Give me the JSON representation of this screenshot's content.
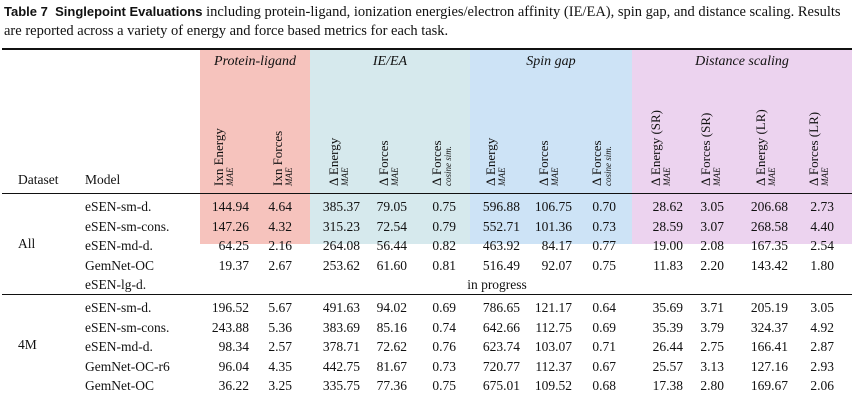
{
  "caption": {
    "label": "Table 7",
    "bold_title": "Singlepoint Evaluations",
    "text": " including protein-ligand, ionization energies/electron affinity (IE/EA), spin gap, and distance scaling. Results are reported across a variety of energy and force based metrics for each task."
  },
  "groups": [
    {
      "label": "Protein-ligand",
      "color": "#f6c3bd"
    },
    {
      "label": "IE/EA",
      "color": "#d6e9ed"
    },
    {
      "label": "Spin gap",
      "color": "#cde3f6"
    },
    {
      "label": "Distance scaling",
      "color": "#ecd3ef"
    }
  ],
  "header": {
    "dataset": "Dataset",
    "model": "Model",
    "columns": [
      {
        "label": "Ixn Energy",
        "sub": "MAE"
      },
      {
        "label": "Ixn Forces",
        "sub": "MAE"
      },
      {
        "label": "Δ Energy",
        "sub": "MAE"
      },
      {
        "label": "Δ Forces",
        "sub": "MAE"
      },
      {
        "label": "Δ Forces",
        "sub": "cosine sim."
      },
      {
        "label": "Δ Energy",
        "sub": "MAE"
      },
      {
        "label": "Δ Forces",
        "sub": "MAE"
      },
      {
        "label": "Δ Forces",
        "sub": "cosine sim."
      },
      {
        "label": "Δ Energy (SR)",
        "sub": "MAE"
      },
      {
        "label": "Δ Forces (SR)",
        "sub": "MAE"
      },
      {
        "label": "Δ Energy (LR)",
        "sub": "MAE"
      },
      {
        "label": "Δ Forces (LR)",
        "sub": "MAE"
      }
    ]
  },
  "sections": [
    {
      "dataset": "All",
      "rows": [
        {
          "model": "eSEN-sm-d.",
          "values": [
            "144.94",
            "4.64",
            "385.37",
            "79.05",
            "0.75",
            "596.88",
            "106.75",
            "0.70",
            "28.62",
            "3.05",
            "206.68",
            "2.73"
          ]
        },
        {
          "model": "eSEN-sm-cons.",
          "values": [
            "147.26",
            "4.32",
            "315.23",
            "72.54",
            "0.79",
            "552.71",
            "101.36",
            "0.73",
            "28.59",
            "3.07",
            "268.58",
            "4.40"
          ]
        },
        {
          "model": "eSEN-md-d.",
          "values": [
            "64.25",
            "2.16",
            "264.08",
            "56.44",
            "0.82",
            "463.92",
            "84.17",
            "0.77",
            "19.00",
            "2.08",
            "167.35",
            "2.54"
          ]
        },
        {
          "model": "GemNet-OC",
          "values": [
            "19.37",
            "2.67",
            "253.62",
            "61.60",
            "0.81",
            "516.49",
            "92.07",
            "0.75",
            "11.83",
            "2.20",
            "143.42",
            "1.80"
          ]
        },
        {
          "model": "eSEN-lg-d.",
          "note": "in progress"
        }
      ]
    },
    {
      "dataset": "4M",
      "rows": [
        {
          "model": "eSEN-sm-d.",
          "values": [
            "196.52",
            "5.67",
            "491.63",
            "94.02",
            "0.69",
            "786.65",
            "121.17",
            "0.64",
            "35.69",
            "3.71",
            "205.19",
            "3.05"
          ]
        },
        {
          "model": "eSEN-sm-cons.",
          "values": [
            "243.88",
            "5.36",
            "383.69",
            "85.16",
            "0.74",
            "642.66",
            "112.75",
            "0.69",
            "35.39",
            "3.79",
            "324.37",
            "4.92"
          ]
        },
        {
          "model": "eSEN-md-d.",
          "values": [
            "98.34",
            "2.57",
            "378.71",
            "72.62",
            "0.76",
            "623.74",
            "103.07",
            "0.71",
            "26.44",
            "2.75",
            "166.41",
            "2.87"
          ]
        },
        {
          "model": "GemNet-OC-r6",
          "values": [
            "96.04",
            "4.35",
            "442.75",
            "81.67",
            "0.73",
            "720.77",
            "112.37",
            "0.67",
            "25.57",
            "3.13",
            "127.16",
            "2.93"
          ]
        },
        {
          "model": "GemNet-OC",
          "values": [
            "36.22",
            "3.25",
            "335.75",
            "77.36",
            "0.75",
            "675.01",
            "109.52",
            "0.68",
            "17.38",
            "2.80",
            "169.67",
            "2.06"
          ]
        }
      ]
    }
  ]
}
